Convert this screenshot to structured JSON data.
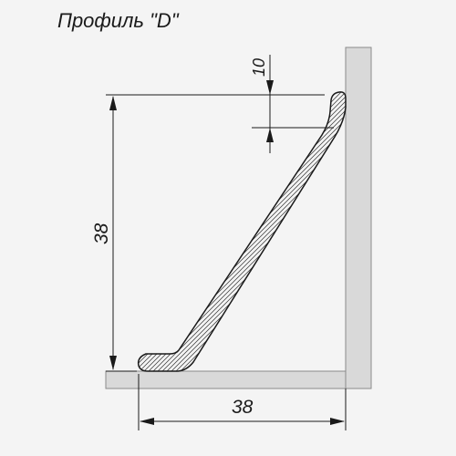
{
  "title": "Профиль \"D\"",
  "dimensions": {
    "height_label": "38",
    "width_label": "38",
    "lip_label": "10"
  },
  "colors": {
    "background": "#f4f4f4",
    "surface": "#d9d9d9",
    "line": "#1a1a1a"
  }
}
